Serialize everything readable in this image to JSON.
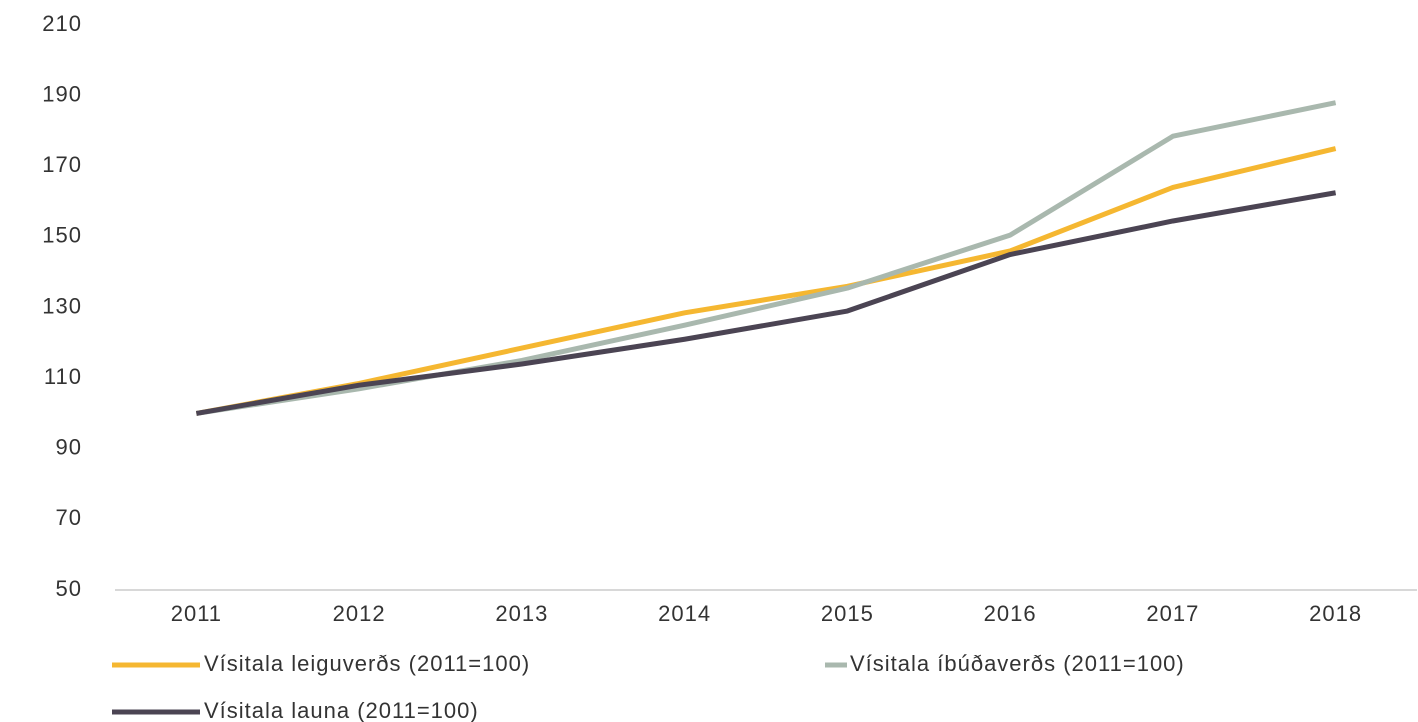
{
  "chart_data": {
    "type": "line",
    "categories": [
      "2011",
      "2012",
      "2013",
      "2014",
      "2015",
      "2016",
      "2017",
      "2018"
    ],
    "series": [
      {
        "name": "Vísitala leiguverðs (2011=100)",
        "color": "#f5b731",
        "values": [
          100,
          108.5,
          118.5,
          128.5,
          136,
          146,
          164,
          175
        ]
      },
      {
        "name": "Vísitala íbúðaverðs (2011=100)",
        "color": "#a9b8ae",
        "values": [
          100,
          107,
          115,
          125,
          135.5,
          150.5,
          178.5,
          188
        ]
      },
      {
        "name": "Vísitala launa (2011=100)",
        "color": "#4b4453",
        "values": [
          100,
          108,
          114,
          121,
          129,
          145,
          154.5,
          162.5
        ]
      }
    ],
    "ylim": [
      50,
      210
    ],
    "yticks": [
      50,
      70,
      90,
      110,
      130,
      150,
      170,
      190,
      210
    ]
  }
}
